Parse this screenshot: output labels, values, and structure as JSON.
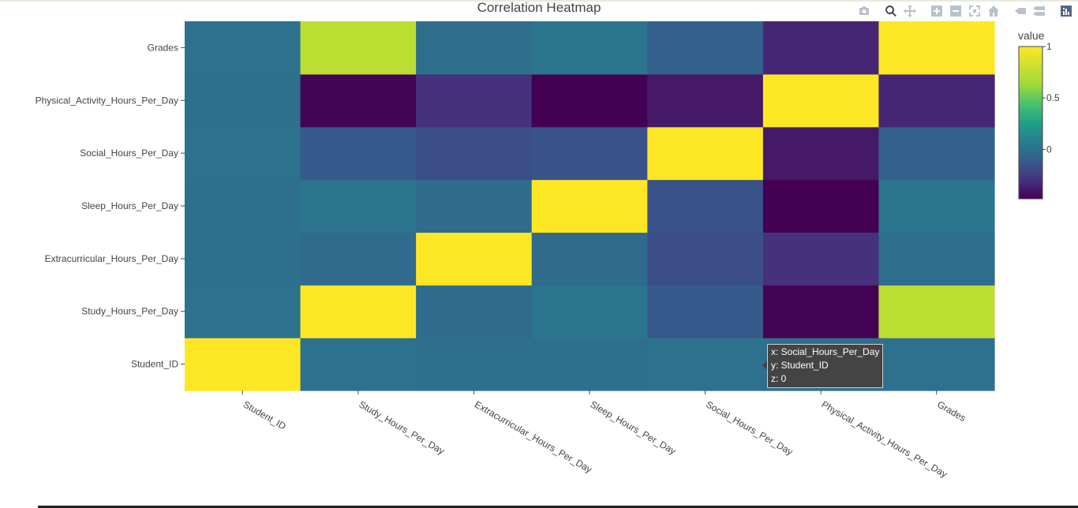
{
  "chart_data": {
    "type": "heatmap",
    "title": "Correlation Heatmap",
    "x": [
      "Student_ID",
      "Study_Hours_Per_Day",
      "Extracurricular_Hours_Per_Day",
      "Sleep_Hours_Per_Day",
      "Social_Hours_Per_Day",
      "Physical_Activity_Hours_Per_Day",
      "Grades"
    ],
    "y": [
      "Student_ID",
      "Study_Hours_Per_Day",
      "Extracurricular_Hours_Per_Day",
      "Sleep_Hours_Per_Day",
      "Social_Hours_Per_Day",
      "Physical_Activity_Hours_Per_Day",
      "Grades"
    ],
    "z": [
      [
        1.0,
        0.0,
        -0.01,
        -0.01,
        0.0,
        -0.01,
        0.0
      ],
      [
        0.0,
        1.0,
        -0.03,
        0.03,
        -0.12,
        -0.47,
        0.74
      ],
      [
        -0.01,
        -0.03,
        1.0,
        -0.03,
        -0.17,
        -0.3,
        -0.02
      ],
      [
        -0.01,
        0.03,
        -0.03,
        1.0,
        -0.15,
        -0.48,
        0.02
      ],
      [
        0.0,
        -0.12,
        -0.17,
        -0.15,
        1.0,
        -0.39,
        -0.09
      ],
      [
        -0.01,
        -0.47,
        -0.3,
        -0.48,
        -0.39,
        1.0,
        -0.34
      ],
      [
        0.0,
        0.74,
        -0.02,
        0.02,
        -0.09,
        -0.34,
        1.0
      ]
    ],
    "colorscale": "Viridis",
    "zmin": -0.48,
    "zmax": 1.0,
    "colorbar": {
      "title": "value",
      "ticks": [
        "1",
        "0.5",
        "0"
      ],
      "tick_values": [
        1,
        0.5,
        0
      ]
    },
    "hover": {
      "x_label": "x: Social_Hours_Per_Day",
      "y_label": "y: Student_ID",
      "z_label": "z: 0"
    }
  }
}
